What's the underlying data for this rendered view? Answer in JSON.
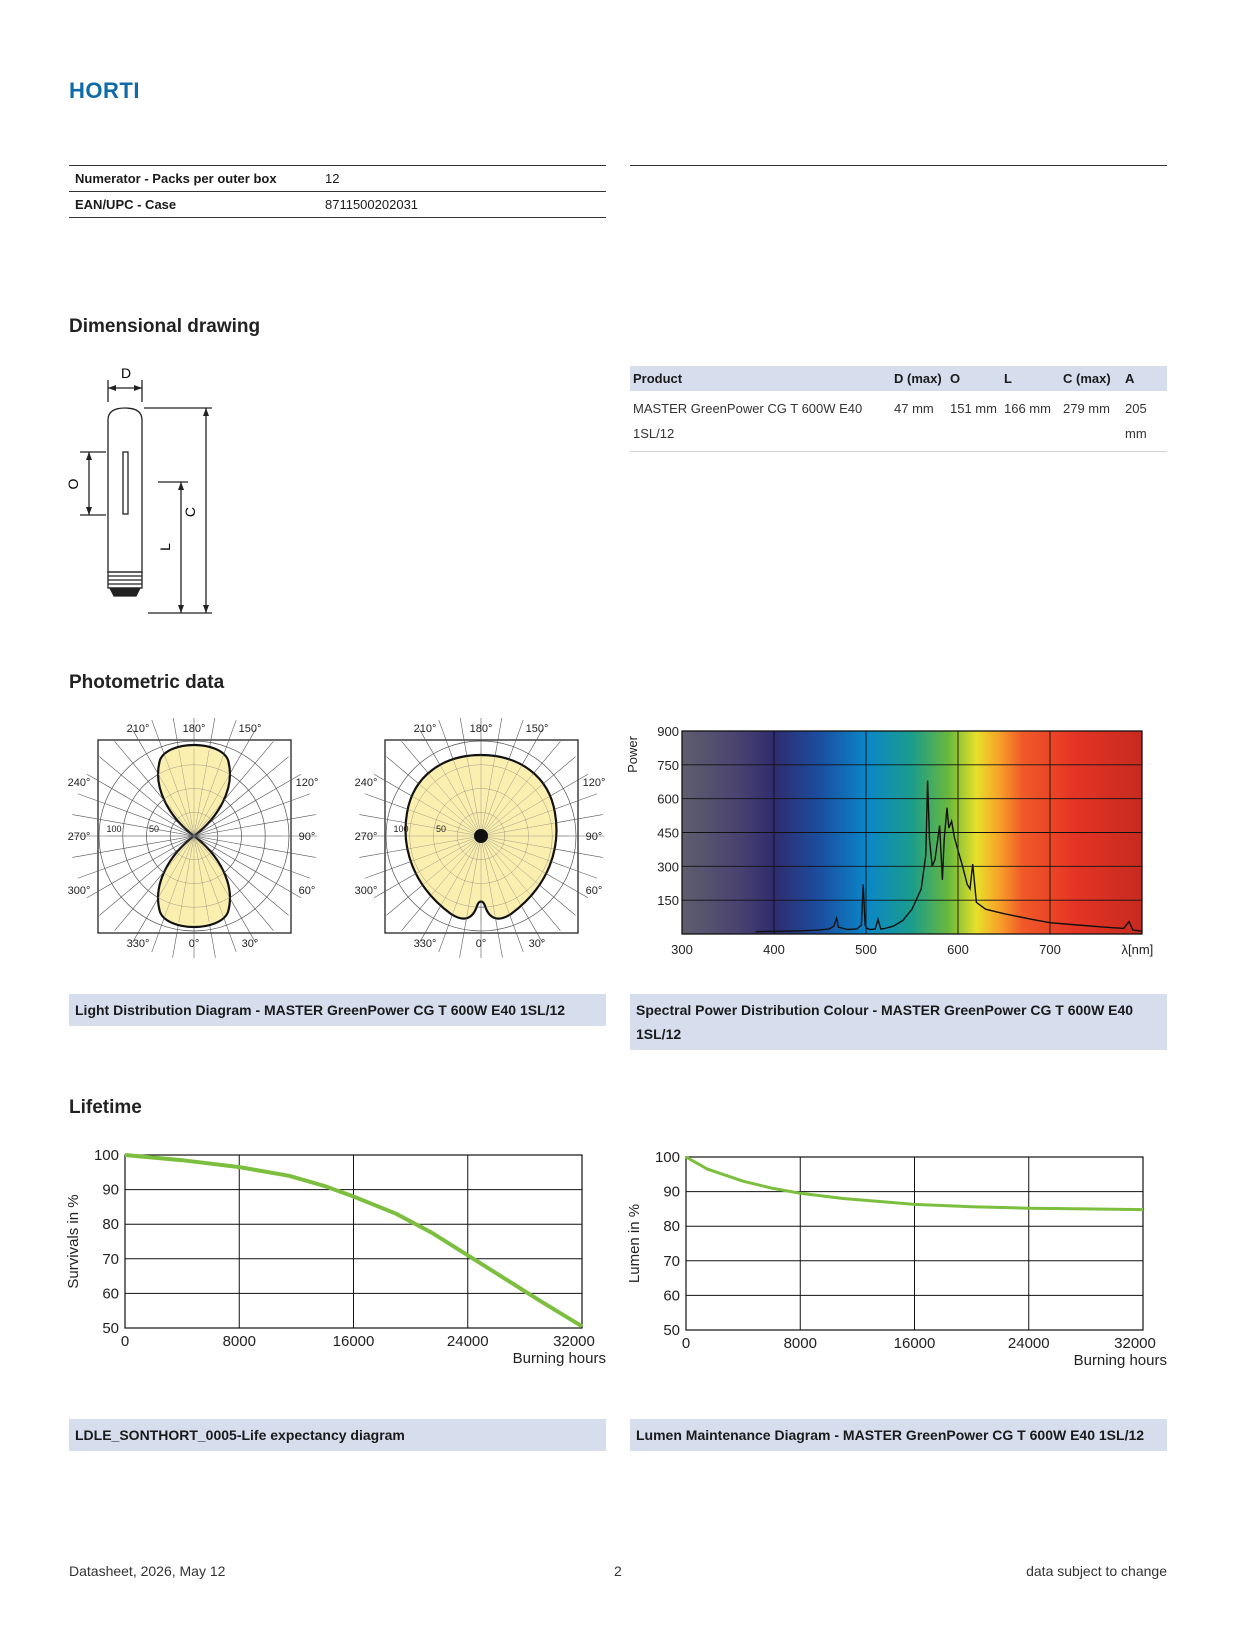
{
  "header": {
    "brand": "HORTI"
  },
  "packaging_table": [
    {
      "label": "Numerator - Packs per outer box",
      "value": "12"
    },
    {
      "label": "EAN/UPC - Case",
      "value": "8711500202031"
    }
  ],
  "sections": {
    "dimensional": "Dimensional drawing",
    "photometric": "Photometric data",
    "lifetime": "Lifetime"
  },
  "drawing_labels": {
    "D": "D",
    "O": "O",
    "C": "C",
    "L": "L"
  },
  "dimension_table": {
    "headers": [
      "Product",
      "D (max)",
      "O",
      "L",
      "C (max)",
      "A"
    ],
    "row": {
      "product": "MASTER GreenPower CG T 600W E40 1SL/12",
      "d_max": "47 mm",
      "o": "151 mm",
      "l": "166 mm",
      "c_max": "279 mm",
      "a": "205 mm"
    }
  },
  "polar_labels": {
    "top": [
      "210°",
      "180°",
      "150°"
    ],
    "left": [
      "240°",
      "270°",
      "300°"
    ],
    "right": [
      "120°",
      "90°",
      "60°"
    ],
    "bottom": [
      "330°",
      "0°",
      "30°"
    ],
    "rings": [
      "100",
      "50"
    ]
  },
  "captions": {
    "light_distribution": "Light Distribution Diagram - MASTER GreenPower CG T 600W E40 1SL/12",
    "spectral": "Spectral Power Distribution Colour - MASTER GreenPower CG T 600W E40 1SL/12",
    "life_expectancy": "LDLE_SONTHORT_0005-Life expectancy diagram",
    "lumen_maintenance": "Lumen Maintenance Diagram - MASTER GreenPower CG T 600W E40 1SL/12"
  },
  "chart_data": [
    {
      "type": "line",
      "title": "",
      "ylabel": "Power",
      "xlabel": "λ[nm]",
      "xlim": [
        300,
        800
      ],
      "ylim": [
        0,
        900
      ],
      "x_ticks": [
        "300",
        "400",
        "500",
        "600",
        "700",
        "λ[nm]"
      ],
      "y_ticks": [
        "150",
        "300",
        "450",
        "600",
        "750",
        "900"
      ],
      "grid": true,
      "series": [
        {
          "x": [
            380,
            400,
            430,
            450,
            460,
            465,
            468,
            470,
            480,
            490,
            495,
            497,
            499,
            501,
            505,
            510,
            513,
            516,
            520,
            530,
            540,
            550,
            560,
            565,
            567,
            569,
            572,
            575,
            580,
            583,
            585,
            588,
            590,
            593,
            596,
            600,
            605,
            610,
            613,
            616,
            620,
            630,
            650,
            680,
            700,
            730,
            760,
            780,
            786,
            790,
            800
          ],
          "y": [
            10,
            12,
            14,
            18,
            22,
            35,
            70,
            30,
            20,
            22,
            40,
            220,
            40,
            25,
            20,
            22,
            65,
            22,
            24,
            35,
            60,
            110,
            200,
            350,
            680,
            420,
            300,
            330,
            480,
            240,
            420,
            560,
            470,
            500,
            430,
            370,
            300,
            220,
            200,
            310,
            140,
            110,
            90,
            65,
            50,
            40,
            30,
            25,
            55,
            18,
            12
          ]
        }
      ]
    },
    {
      "type": "line",
      "title": "",
      "ylabel": "Survivals in %",
      "xlabel": "Burning hours",
      "xlim": [
        0,
        32000
      ],
      "ylim": [
        50,
        100
      ],
      "x_ticks": [
        "0",
        "8000",
        "16000",
        "24000",
        "32000"
      ],
      "y_ticks": [
        "50",
        "60",
        "70",
        "80",
        "90",
        "100"
      ],
      "grid": true,
      "series": [
        {
          "x": [
            0,
            4000,
            8000,
            11500,
            14000,
            16000,
            19000,
            21500,
            24000,
            26500,
            29000,
            32000
          ],
          "y": [
            100,
            98.5,
            96.5,
            94,
            91,
            88,
            83,
            77.5,
            71,
            64.5,
            58,
            50.5
          ]
        }
      ]
    },
    {
      "type": "line",
      "title": "",
      "ylabel": "Lumen in %",
      "xlabel": "Burning hours",
      "xlim": [
        0,
        32000
      ],
      "ylim": [
        50,
        100
      ],
      "x_ticks": [
        "0",
        "8000",
        "16000",
        "24000",
        "32000"
      ],
      "y_ticks": [
        "50",
        "60",
        "70",
        "80",
        "90",
        "100"
      ],
      "grid": true,
      "series": [
        {
          "x": [
            0,
            1500,
            4000,
            6000,
            8000,
            11000,
            14000,
            16000,
            20000,
            24000,
            28000,
            32000
          ],
          "y": [
            100,
            96.5,
            93,
            91,
            89.5,
            88,
            87,
            86.3,
            85.6,
            85.2,
            85,
            84.8
          ]
        }
      ]
    }
  ],
  "footer": {
    "left": "Datasheet, 2026, May 12",
    "center": "2",
    "right": "data subject to change"
  }
}
